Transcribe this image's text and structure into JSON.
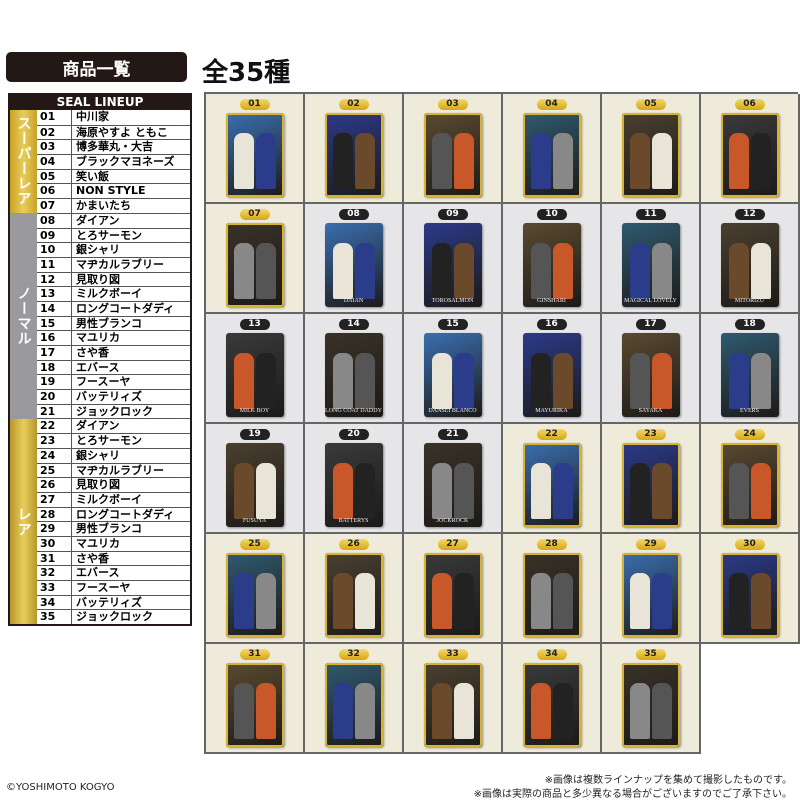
{
  "header": {
    "title": "商品一覧",
    "total": "全35種"
  },
  "table": {
    "heading": "SEAL LINEUP",
    "categories": [
      {
        "label": "スーパーレア",
        "color": "#c9a227",
        "count": 7
      },
      {
        "label": "ノーマル",
        "color": "#9a9a9e",
        "count": 14
      },
      {
        "label": "レア",
        "color": "#b8972c",
        "count": 14
      }
    ],
    "rows": [
      {
        "num": "01",
        "name": "中川家"
      },
      {
        "num": "02",
        "name": "海原やすよ ともこ"
      },
      {
        "num": "03",
        "name": "博多華丸・大吉"
      },
      {
        "num": "04",
        "name": "ブラックマヨネーズ"
      },
      {
        "num": "05",
        "name": "笑い飯"
      },
      {
        "num": "06",
        "name": "NON STYLE"
      },
      {
        "num": "07",
        "name": "かまいたち"
      },
      {
        "num": "08",
        "name": "ダイアン"
      },
      {
        "num": "09",
        "name": "とろサーモン"
      },
      {
        "num": "10",
        "name": "銀シャリ"
      },
      {
        "num": "11",
        "name": "マヂカルラブリー"
      },
      {
        "num": "12",
        "name": "見取り図"
      },
      {
        "num": "13",
        "name": "ミルクボーイ"
      },
      {
        "num": "14",
        "name": "ロングコートダディ"
      },
      {
        "num": "15",
        "name": "男性ブランコ"
      },
      {
        "num": "16",
        "name": "マユリカ"
      },
      {
        "num": "17",
        "name": "さや香"
      },
      {
        "num": "18",
        "name": "エバース"
      },
      {
        "num": "19",
        "name": "フースーヤ"
      },
      {
        "num": "20",
        "name": "バッテリィズ"
      },
      {
        "num": "21",
        "name": "ジョックロック"
      },
      {
        "num": "22",
        "name": "ダイアン"
      },
      {
        "num": "23",
        "name": "とろサーモン"
      },
      {
        "num": "24",
        "name": "銀シャリ"
      },
      {
        "num": "25",
        "name": "マヂカルラブリー"
      },
      {
        "num": "26",
        "name": "見取り図"
      },
      {
        "num": "27",
        "name": "ミルクボーイ"
      },
      {
        "num": "28",
        "name": "ロングコートダディ"
      },
      {
        "num": "29",
        "name": "男性ブランコ"
      },
      {
        "num": "30",
        "name": "マユリカ"
      },
      {
        "num": "31",
        "name": "さや香"
      },
      {
        "num": "32",
        "name": "エバース"
      },
      {
        "num": "33",
        "name": "フースーヤ"
      },
      {
        "num": "34",
        "name": "バッテリィズ"
      },
      {
        "num": "35",
        "name": "ジョックロック"
      }
    ]
  },
  "cards": {
    "normal_captions": [
      "DAIAN",
      "TOROSALMON",
      "GINSHARI",
      "MAGICAL LOVELY",
      "MITORIZU",
      "MILK BOY",
      "LONG COAT DADDY",
      "DANSEI BLANCO",
      "MAYURIKA",
      "SAYAKA",
      "EVERS",
      "FUSUYA",
      "BATTERYS",
      "JOCKROCK"
    ]
  },
  "colors": {
    "super_rare": "#c9a227",
    "normal": "#9a9a9e",
    "rare": "#b8972c",
    "header_bg": "#231815"
  },
  "footer": {
    "copyright": "©YOSHIMOTO KOGYO",
    "note1": "※画像は複数ラインナップを集めて撮影したものです。",
    "note2": "※画像は実際の商品と多少異なる場合がございますのでご了承下さい。"
  }
}
